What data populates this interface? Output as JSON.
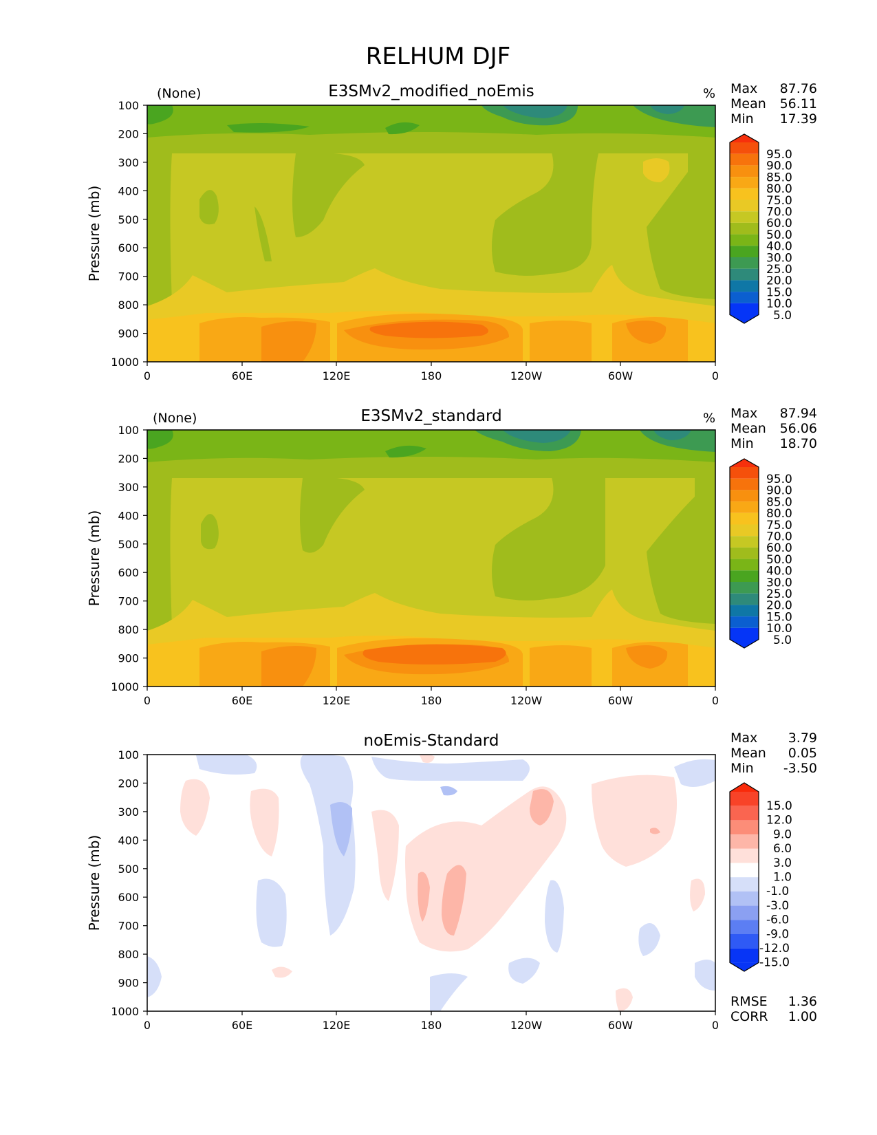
{
  "figure": {
    "title": "RELHUM DJF",
    "ylabel": "Pressure (mb)",
    "x_ticks": [
      "0",
      "60E",
      "120E",
      "180",
      "120W",
      "60W",
      "0"
    ],
    "y_ticks": [
      "100",
      "200",
      "300",
      "400",
      "500",
      "600",
      "700",
      "800",
      "900",
      "1000"
    ]
  },
  "colors": {
    "main_levels": [
      "5.0",
      "10.0",
      "15.0",
      "20.0",
      "25.0",
      "30.0",
      "40.0",
      "50.0",
      "60.0",
      "70.0",
      "75.0",
      "80.0",
      "85.0",
      "90.0",
      "95.0"
    ],
    "main_colors": [
      "#0535f7",
      "#0b5fd0",
      "#0f77a6",
      "#2e8a7a",
      "#3d9a52",
      "#4aa520",
      "#7ab517",
      "#a0bc1c",
      "#c6c823",
      "#e9c925",
      "#f8c21e",
      "#f9a815",
      "#f8900f",
      "#f7730c",
      "#f5500b",
      "#f7300c"
    ],
    "diff_levels": [
      "-15.0",
      "-12.0",
      "-9.0",
      "-6.0",
      "-3.0",
      "-1.0",
      "1.0",
      "3.0",
      "6.0",
      "9.0",
      "12.0",
      "15.0"
    ],
    "diff_colors": [
      "#0735f6",
      "#2f5af5",
      "#5c7ef3",
      "#8ba0f2",
      "#b1c1f5",
      "#d6dff9",
      "#ffffff",
      "#ffe0da",
      "#fdb6a8",
      "#fc8d78",
      "#fa6550",
      "#f84328",
      "#f92a0a"
    ]
  },
  "chart_data": [
    {
      "type": "heatmap",
      "title": "E3SMv2_modified_noEmis",
      "left_label": "(None)",
      "units": "%",
      "stats": [
        {
          "label": "Max",
          "value": "87.76"
        },
        {
          "label": "Mean",
          "value": "56.11"
        },
        {
          "label": "Min",
          "value": "17.39"
        }
      ],
      "x_range": [
        0,
        360
      ],
      "y_range": [
        100,
        1000
      ],
      "colorbar_levels": [
        "95.0",
        "90.0",
        "85.0",
        "80.0",
        "75.0",
        "70.0",
        "60.0",
        "50.0",
        "40.0",
        "30.0",
        "25.0",
        "20.0",
        "15.0",
        "10.0",
        "5.0"
      ]
    },
    {
      "type": "heatmap",
      "title": "E3SMv2_standard",
      "left_label": "(None)",
      "units": "%",
      "stats": [
        {
          "label": "Max",
          "value": "87.94"
        },
        {
          "label": "Mean",
          "value": "56.06"
        },
        {
          "label": "Min",
          "value": "18.70"
        }
      ],
      "x_range": [
        0,
        360
      ],
      "y_range": [
        100,
        1000
      ],
      "colorbar_levels": [
        "95.0",
        "90.0",
        "85.0",
        "80.0",
        "75.0",
        "70.0",
        "60.0",
        "50.0",
        "40.0",
        "30.0",
        "25.0",
        "20.0",
        "15.0",
        "10.0",
        "5.0"
      ]
    },
    {
      "type": "heatmap",
      "title": "noEmis-Standard",
      "left_label": "",
      "units": "",
      "stats": [
        {
          "label": "Max",
          "value": "3.79"
        },
        {
          "label": "Mean",
          "value": "0.05"
        },
        {
          "label": "Min",
          "value": "-3.50"
        }
      ],
      "x_range": [
        0,
        360
      ],
      "y_range": [
        100,
        1000
      ],
      "colorbar_levels": [
        "15.0",
        "12.0",
        "9.0",
        "6.0",
        "3.0",
        "1.0",
        "-1.0",
        "-3.0",
        "-6.0",
        "-9.0",
        "-12.0",
        "-15.0"
      ],
      "bottom_stats": [
        {
          "label": "RMSE",
          "value": "1.36"
        },
        {
          "label": "CORR",
          "value": "1.00"
        }
      ]
    }
  ]
}
